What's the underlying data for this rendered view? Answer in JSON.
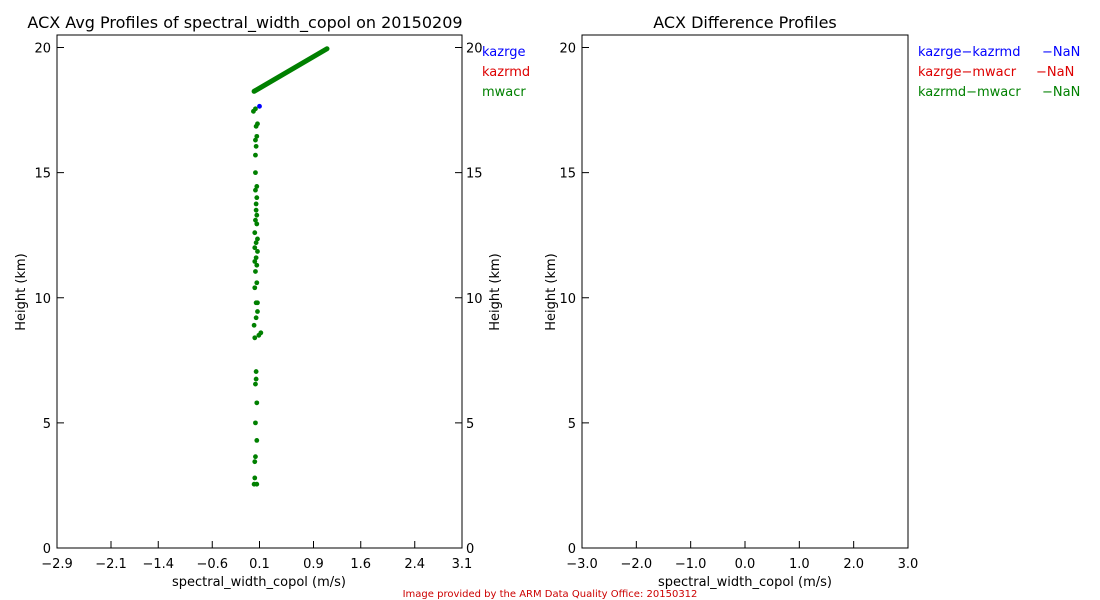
{
  "credit": "Image provided by the ARM Data Quality Office: 20150312",
  "chart_data": [
    {
      "type": "scatter",
      "title": "ACX Avg Profiles of spectral_width_copol on 20150209",
      "xlabel": "spectral_width_copol (m/s)",
      "ylabel": "Height (km)",
      "ylabel_right": "Height (km)",
      "xlim": [
        -2.9,
        3.1
      ],
      "ylim": [
        0,
        20.5
      ],
      "x_ticks": [
        -2.9,
        -2.1,
        -1.4,
        -0.6,
        0.1,
        0.9,
        1.6,
        2.4,
        3.1
      ],
      "x_tick_labels": [
        "−2.9",
        "−2.1",
        "−1.4",
        "−0.6",
        "0.1",
        "0.9",
        "1.6",
        "2.4",
        "3.1"
      ],
      "y_ticks": [
        0,
        5,
        10,
        15,
        20
      ],
      "y_tick_labels": [
        "0",
        "5",
        "10",
        "15",
        "20"
      ],
      "legend": [
        {
          "name": "kazrge",
          "color": "#0000ff"
        },
        {
          "name": "kazrmd",
          "color": "#dd0000"
        },
        {
          "name": "mwacr",
          "color": "#008000"
        }
      ],
      "series": [
        {
          "name": "kazrge",
          "color": "#0000ff",
          "points": [
            [
              0.1,
              17.65
            ]
          ]
        },
        {
          "name": "mwacr",
          "color": "#008000",
          "points": [
            [
              0.02,
              2.55
            ],
            [
              0.06,
              2.55
            ],
            [
              0.03,
              2.8
            ],
            [
              0.03,
              3.45
            ],
            [
              0.04,
              3.65
            ],
            [
              0.06,
              4.3
            ],
            [
              0.04,
              5.0
            ],
            [
              0.06,
              5.8
            ],
            [
              0.04,
              6.55
            ],
            [
              0.05,
              6.75
            ],
            [
              0.05,
              7.05
            ],
            [
              0.03,
              8.4
            ],
            [
              0.09,
              8.5
            ],
            [
              0.12,
              8.6
            ],
            [
              0.02,
              8.9
            ],
            [
              0.05,
              9.2
            ],
            [
              0.07,
              9.45
            ],
            [
              0.05,
              9.8
            ],
            [
              0.07,
              9.8
            ],
            [
              0.03,
              10.4
            ],
            [
              0.06,
              10.6
            ],
            [
              0.04,
              11.05
            ],
            [
              0.06,
              11.3
            ],
            [
              0.03,
              11.45
            ],
            [
              0.05,
              11.6
            ],
            [
              0.07,
              11.85
            ],
            [
              0.03,
              12.0
            ],
            [
              0.05,
              12.2
            ],
            [
              0.07,
              12.35
            ],
            [
              0.03,
              12.6
            ],
            [
              0.06,
              12.95
            ],
            [
              0.04,
              13.1
            ],
            [
              0.06,
              13.3
            ],
            [
              0.05,
              13.5
            ],
            [
              0.05,
              13.75
            ],
            [
              0.06,
              14.0
            ],
            [
              0.04,
              14.3
            ],
            [
              0.06,
              14.45
            ],
            [
              0.04,
              15.0
            ],
            [
              0.04,
              15.7
            ],
            [
              0.05,
              16.05
            ],
            [
              0.04,
              16.3
            ],
            [
              0.06,
              16.45
            ],
            [
              0.05,
              16.85
            ],
            [
              0.07,
              16.95
            ],
            [
              0.01,
              17.45
            ],
            [
              0.04,
              17.55
            ]
          ],
          "line": [
            [
              0.02,
              18.25
            ],
            [
              1.1,
              19.95
            ]
          ]
        }
      ]
    },
    {
      "type": "scatter",
      "title": "ACX Difference Profiles",
      "xlabel": "spectral_width_copol (m/s)",
      "ylabel": "Height (km)",
      "xlim": [
        -3.0,
        3.0
      ],
      "ylim": [
        0,
        20.5
      ],
      "x_ticks": [
        -3.0,
        -2.0,
        -1.0,
        0.0,
        1.0,
        2.0,
        3.0
      ],
      "x_tick_labels": [
        "−3.0",
        "−2.0",
        "−1.0",
        "0.0",
        "1.0",
        "2.0",
        "3.0"
      ],
      "y_ticks": [
        0,
        5,
        10,
        15,
        20
      ],
      "y_tick_labels": [
        "0",
        "5",
        "10",
        "15",
        "20"
      ],
      "legend": [
        {
          "name": "kazrge−kazrmd",
          "value": "−NaN",
          "color": "#0000ff"
        },
        {
          "name": "kazrge−mwacr",
          "value": "−NaN",
          "color": "#dd0000"
        },
        {
          "name": "kazrmd−mwacr",
          "value": "−NaN",
          "color": "#008000"
        }
      ],
      "series": []
    }
  ]
}
